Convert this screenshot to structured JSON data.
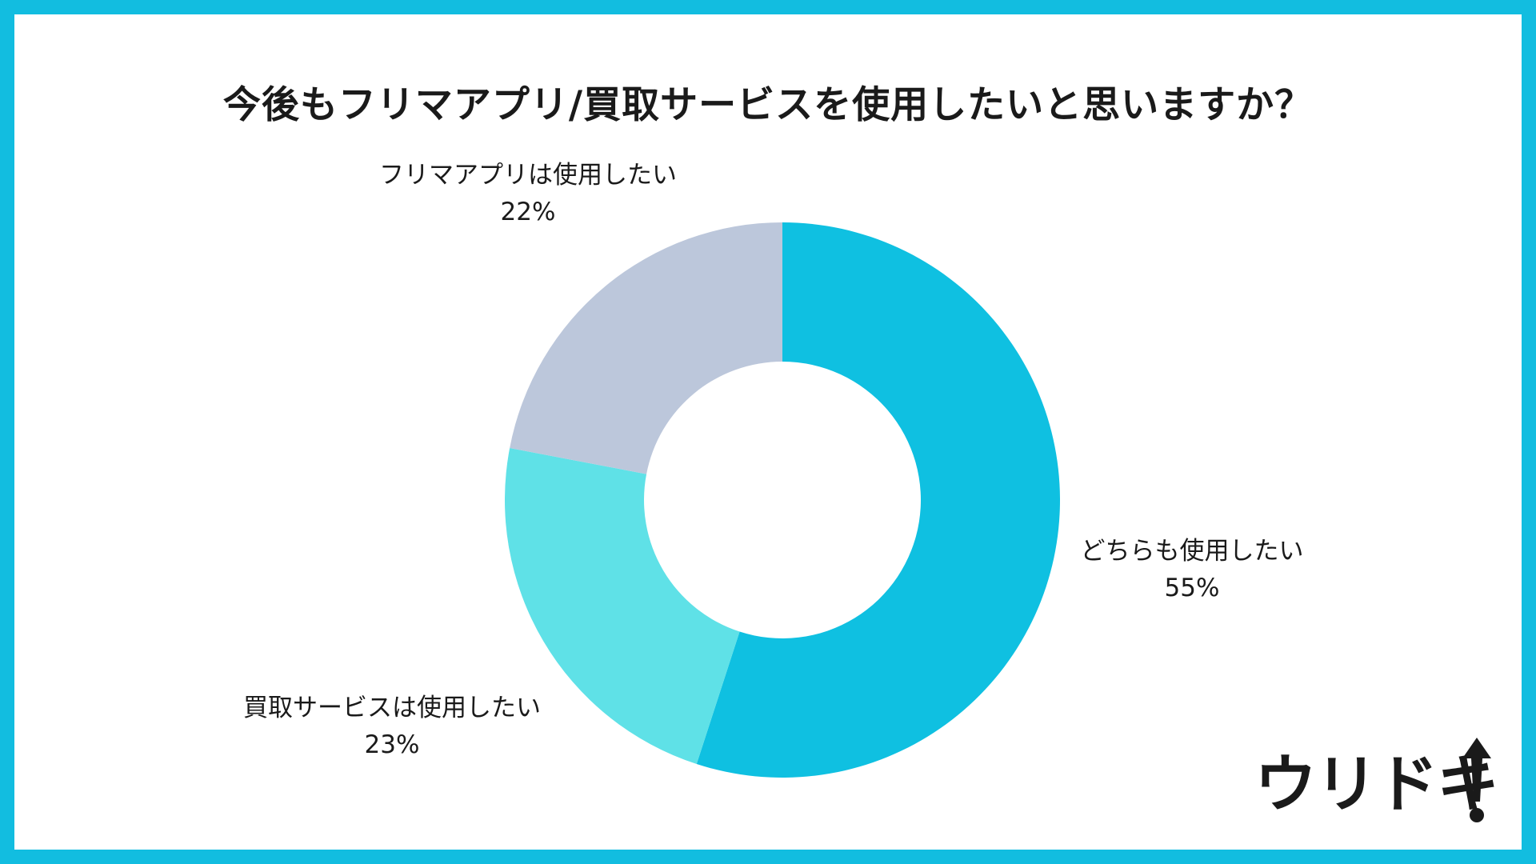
{
  "title": "今後もフリマアプリ/買取サービスを使用したいと思いますか？",
  "chart_data": {
    "type": "pie",
    "subtype": "donut",
    "categories": [
      "どちらも使用したい",
      "買取サービスは使用したい",
      "フリマアプリは使用したい"
    ],
    "values": [
      55,
      23,
      22
    ],
    "value_labels": [
      "55%",
      "23%",
      "22%"
    ],
    "colors": [
      "#0fc0e1",
      "#5fe1e7",
      "#bcc7db"
    ],
    "start_angle": "12 o'clock",
    "direction": "clockwise"
  },
  "logo": {
    "text": "ウリドキ",
    "mark": "exclamation-arrow-icon"
  },
  "colors": {
    "frame": "#12bde0",
    "background": "#ffffff",
    "text": "#1a1a1a"
  }
}
